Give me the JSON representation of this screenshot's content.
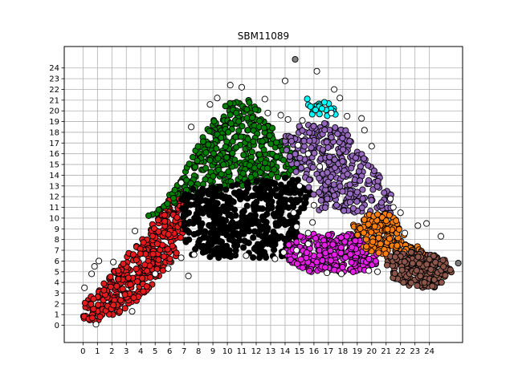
{
  "chart_data": {
    "type": "scatter",
    "title": "SBM11089",
    "xlabel": "",
    "ylabel": "",
    "xlim": [
      -1.3,
      26.3
    ],
    "ylim": [
      -1.6,
      26.0
    ],
    "x_ticks": [
      "0",
      "1",
      "2",
      "3",
      "4",
      "5",
      "6",
      "7",
      "8",
      "9",
      "10",
      "11",
      "12",
      "13",
      "14",
      "15",
      "16",
      "17",
      "18",
      "19",
      "20",
      "21",
      "22",
      "23",
      "24"
    ],
    "y_ticks": [
      "0",
      "1",
      "2",
      "3",
      "4",
      "5",
      "6",
      "7",
      "8",
      "9",
      "10",
      "11",
      "12",
      "13",
      "14",
      "15",
      "16",
      "17",
      "18",
      "19",
      "20",
      "21",
      "22",
      "23",
      "24"
    ],
    "grid": true,
    "legend": "none",
    "colors": {
      "red": "#e41a1c",
      "green": "#007f00",
      "black": "#000000",
      "purple": "#9467bd",
      "cyan": "#00ffff",
      "magenta": "#e51ee5",
      "orange": "#ff7f0e",
      "brown": "#8c564b",
      "white": "#ffffff",
      "gray": "#808080"
    },
    "clusters": [
      {
        "color": "red",
        "polygon": [
          [
            0,
            0.5
          ],
          [
            0,
            2
          ],
          [
            1.5,
            4
          ],
          [
            3,
            6.5
          ],
          [
            4.5,
            9
          ],
          [
            5.5,
            11
          ],
          [
            6.5,
            12.8
          ],
          [
            7.2,
            12.5
          ],
          [
            7.2,
            9.5
          ],
          [
            6.5,
            6.5
          ],
          [
            5.5,
            5
          ],
          [
            4,
            2.5
          ],
          [
            2.8,
            1.2
          ],
          [
            1.5,
            0.6
          ],
          [
            0.4,
            0.3
          ]
        ],
        "count": 420
      },
      {
        "color": "green",
        "polygon": [
          [
            4,
            9.5
          ],
          [
            6.5,
            13
          ],
          [
            8,
            17
          ],
          [
            9.2,
            19.5
          ],
          [
            10.5,
            21.5
          ],
          [
            11.5,
            21.2
          ],
          [
            12.5,
            19.5
          ],
          [
            14,
            17
          ],
          [
            15,
            15.5
          ],
          [
            14.5,
            14
          ],
          [
            12,
            13.2
          ],
          [
            9,
            12.5
          ],
          [
            7.3,
            12.5
          ],
          [
            6.5,
            11.5
          ]
        ],
        "count": 420
      },
      {
        "color": "black",
        "polygon": [
          [
            6.8,
            12.5
          ],
          [
            7,
            8
          ],
          [
            7.5,
            6.5
          ],
          [
            9,
            6.3
          ],
          [
            11,
            6.3
          ],
          [
            13,
            6.3
          ],
          [
            14.5,
            6.6
          ],
          [
            15,
            9
          ],
          [
            15.5,
            11
          ],
          [
            15.8,
            12.5
          ],
          [
            15,
            13.5
          ],
          [
            14,
            14.2
          ],
          [
            12,
            13.5
          ],
          [
            10,
            13
          ],
          [
            8,
            12.8
          ]
        ],
        "count": 520
      },
      {
        "color": "purple",
        "polygon": [
          [
            13.8,
            17.5
          ],
          [
            15,
            18.6
          ],
          [
            16.5,
            19
          ],
          [
            18,
            18.5
          ],
          [
            19,
            17
          ],
          [
            20,
            15
          ],
          [
            21,
            13
          ],
          [
            21.5,
            12
          ],
          [
            21.3,
            10
          ],
          [
            19.5,
            10.5
          ],
          [
            17.5,
            10.5
          ],
          [
            16,
            10.8
          ],
          [
            15.8,
            12.5
          ],
          [
            15,
            13.8
          ],
          [
            14.2,
            15.5
          ]
        ],
        "count": 330
      },
      {
        "color": "cyan",
        "polygon": [
          [
            15.4,
            21.4
          ],
          [
            16.2,
            21
          ],
          [
            17.3,
            20.7
          ],
          [
            17.6,
            19.3
          ],
          [
            16.5,
            19.5
          ],
          [
            15.5,
            19.8
          ]
        ],
        "count": 22
      },
      {
        "color": "magenta",
        "polygon": [
          [
            14,
            7.5
          ],
          [
            15,
            8.3
          ],
          [
            17,
            8.8
          ],
          [
            19,
            8.6
          ],
          [
            20.4,
            7.6
          ],
          [
            20.6,
            6
          ],
          [
            19.5,
            5
          ],
          [
            17.5,
            4.9
          ],
          [
            15.5,
            5
          ],
          [
            14.3,
            5.8
          ]
        ],
        "count": 300
      },
      {
        "color": "orange",
        "polygon": [
          [
            18.5,
            9.4
          ],
          [
            20,
            10.6
          ],
          [
            21.5,
            10.4
          ],
          [
            22.2,
            8.5
          ],
          [
            23.5,
            7
          ],
          [
            24.3,
            6.5
          ],
          [
            23,
            6.2
          ],
          [
            21,
            6.3
          ],
          [
            19.3,
            7.3
          ]
        ],
        "count": 180
      },
      {
        "color": "brown",
        "polygon": [
          [
            21.2,
            6.6
          ],
          [
            22.5,
            6.9
          ],
          [
            24,
            6.8
          ],
          [
            25.2,
            6
          ],
          [
            25.6,
            5
          ],
          [
            25,
            4
          ],
          [
            24,
            3.3
          ],
          [
            22.8,
            3.5
          ],
          [
            21.5,
            4.3
          ],
          [
            21,
            5.4
          ]
        ],
        "count": 200
      }
    ],
    "outlier_points": [
      {
        "x": 14.7,
        "y": 24.8,
        "color": "gray"
      },
      {
        "x": 10.2,
        "y": 22.4,
        "color": "white"
      },
      {
        "x": 11.0,
        "y": 22.2,
        "color": "white"
      },
      {
        "x": 9.3,
        "y": 21.2,
        "color": "white"
      },
      {
        "x": 8.8,
        "y": 20.6,
        "color": "white"
      },
      {
        "x": 12.6,
        "y": 21.1,
        "color": "white"
      },
      {
        "x": 13.7,
        "y": 19.6,
        "color": "white"
      },
      {
        "x": 14.2,
        "y": 19.2,
        "color": "white"
      },
      {
        "x": 15.2,
        "y": 19.1,
        "color": "white"
      },
      {
        "x": 14.0,
        "y": 22.8,
        "color": "white"
      },
      {
        "x": 16.2,
        "y": 23.7,
        "color": "white"
      },
      {
        "x": 17.4,
        "y": 22.0,
        "color": "white"
      },
      {
        "x": 17.8,
        "y": 21.2,
        "color": "white"
      },
      {
        "x": 17.2,
        "y": 19.8,
        "color": "white"
      },
      {
        "x": 18.3,
        "y": 19.5,
        "color": "white"
      },
      {
        "x": 19.3,
        "y": 19.3,
        "color": "white"
      },
      {
        "x": 19.5,
        "y": 18.2,
        "color": "white"
      },
      {
        "x": 20.0,
        "y": 16.7,
        "color": "white"
      },
      {
        "x": 21.3,
        "y": 11.8,
        "color": "white"
      },
      {
        "x": 21.5,
        "y": 11.0,
        "color": "white"
      },
      {
        "x": 22.0,
        "y": 10.5,
        "color": "white"
      },
      {
        "x": 22.3,
        "y": 8.6,
        "color": "white"
      },
      {
        "x": 23.2,
        "y": 9.3,
        "color": "white"
      },
      {
        "x": 23.8,
        "y": 9.5,
        "color": "white"
      },
      {
        "x": 24.8,
        "y": 8.3,
        "color": "white"
      },
      {
        "x": 26.0,
        "y": 5.8,
        "color": "gray"
      },
      {
        "x": 12.8,
        "y": 19.8,
        "color": "white"
      },
      {
        "x": 7.5,
        "y": 18.5,
        "color": "white"
      },
      {
        "x": 6.8,
        "y": 6.3,
        "color": "white"
      },
      {
        "x": 7.7,
        "y": 6.6,
        "color": "white"
      },
      {
        "x": 7.3,
        "y": 4.6,
        "color": "white"
      },
      {
        "x": 5.9,
        "y": 5.3,
        "color": "white"
      },
      {
        "x": 5.0,
        "y": 4.8,
        "color": "white"
      },
      {
        "x": 1.1,
        "y": 6.0,
        "color": "white"
      },
      {
        "x": 0.8,
        "y": 5.5,
        "color": "white"
      },
      {
        "x": 0.6,
        "y": 4.8,
        "color": "white"
      },
      {
        "x": 0.1,
        "y": 3.5,
        "color": "white"
      },
      {
        "x": 0.9,
        "y": 0.1,
        "color": "white"
      },
      {
        "x": 3.4,
        "y": 1.3,
        "color": "white"
      },
      {
        "x": 2.1,
        "y": 5.9,
        "color": "white"
      },
      {
        "x": 3.6,
        "y": 8.8,
        "color": "white"
      },
      {
        "x": 6.8,
        "y": 13.3,
        "color": "white"
      },
      {
        "x": 13.9,
        "y": 6.8,
        "color": "white"
      },
      {
        "x": 14.8,
        "y": 7.0,
        "color": "white"
      },
      {
        "x": 15.6,
        "y": 7.6,
        "color": "white"
      },
      {
        "x": 15.6,
        "y": 8.6,
        "color": "white"
      },
      {
        "x": 14.8,
        "y": 9.2,
        "color": "white"
      },
      {
        "x": 14.6,
        "y": 10.5,
        "color": "white"
      },
      {
        "x": 15.9,
        "y": 9.6,
        "color": "white"
      },
      {
        "x": 16.0,
        "y": 11.2,
        "color": "white"
      },
      {
        "x": 16.4,
        "y": 14.8,
        "color": "white"
      },
      {
        "x": 15.0,
        "y": 13.0,
        "color": "white"
      },
      {
        "x": 15.6,
        "y": 16.0,
        "color": "white"
      },
      {
        "x": 14.9,
        "y": 16.8,
        "color": "white"
      },
      {
        "x": 17.9,
        "y": 4.8,
        "color": "white"
      },
      {
        "x": 16.9,
        "y": 4.9,
        "color": "white"
      },
      {
        "x": 19.8,
        "y": 5.1,
        "color": "white"
      },
      {
        "x": 20.4,
        "y": 5.0,
        "color": "white"
      },
      {
        "x": 13.3,
        "y": 6.2,
        "color": "white"
      },
      {
        "x": 11.3,
        "y": 6.5,
        "color": "white"
      }
    ]
  }
}
